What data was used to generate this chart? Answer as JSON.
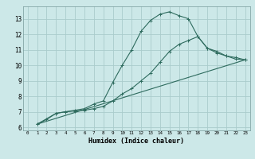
{
  "xlabel": "Humidex (Indice chaleur)",
  "ylabel": "",
  "bg_color": "#cce8e8",
  "grid_color": "#aacccc",
  "line_color": "#2e6b5e",
  "xlim": [
    -0.5,
    23.5
  ],
  "ylim": [
    5.8,
    13.8
  ],
  "xticks": [
    0,
    1,
    2,
    3,
    4,
    5,
    6,
    7,
    8,
    9,
    10,
    11,
    12,
    13,
    14,
    15,
    16,
    17,
    18,
    19,
    20,
    21,
    22,
    23
  ],
  "yticks": [
    6,
    7,
    8,
    9,
    10,
    11,
    12,
    13
  ],
  "line1_x": [
    1,
    2,
    3,
    4,
    5,
    6,
    7,
    8,
    9,
    10,
    11,
    12,
    13,
    14,
    15,
    16,
    17,
    18,
    19,
    20,
    21,
    22,
    23
  ],
  "line1_y": [
    6.2,
    6.5,
    6.9,
    7.0,
    7.1,
    7.2,
    7.5,
    7.7,
    8.9,
    10.0,
    11.0,
    12.2,
    12.9,
    13.3,
    13.45,
    13.2,
    13.0,
    11.85,
    11.1,
    10.8,
    10.6,
    10.5,
    10.35
  ],
  "line2_x": [
    1,
    3,
    4,
    5,
    6,
    7,
    8,
    9,
    10,
    11,
    12,
    13,
    14,
    15,
    16,
    17,
    18,
    19,
    20,
    21,
    22,
    23
  ],
  "line2_y": [
    6.2,
    6.9,
    7.0,
    7.05,
    7.1,
    7.2,
    7.35,
    7.7,
    8.15,
    8.5,
    9.0,
    9.5,
    10.2,
    10.9,
    11.35,
    11.6,
    11.85,
    11.1,
    10.9,
    10.6,
    10.4,
    10.35
  ],
  "line3_x": [
    1,
    23
  ],
  "line3_y": [
    6.2,
    10.35
  ]
}
